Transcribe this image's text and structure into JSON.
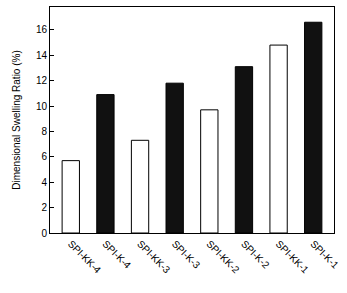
{
  "chart_data": {
    "type": "bar",
    "categories": [
      "SPI-KK-4",
      "SPI-K-4",
      "SPI-KK-3",
      "SPI-K-3",
      "SPI-KK-2",
      "SPI-K-2",
      "SPI-KK-1",
      "SPI-K-1"
    ],
    "values": [
      5.7,
      10.9,
      7.3,
      11.8,
      9.7,
      13.1,
      14.8,
      16.6
    ],
    "colors": [
      "#ffffff",
      "#111111",
      "#ffffff",
      "#111111",
      "#ffffff",
      "#111111",
      "#ffffff",
      "#111111"
    ],
    "y_label": "Dimensional Swelling Ratio (%)",
    "ylim": [
      0,
      17.8
    ],
    "yticks": [
      0,
      2,
      4,
      6,
      8,
      10,
      12,
      14,
      16
    ],
    "grid": false
  }
}
